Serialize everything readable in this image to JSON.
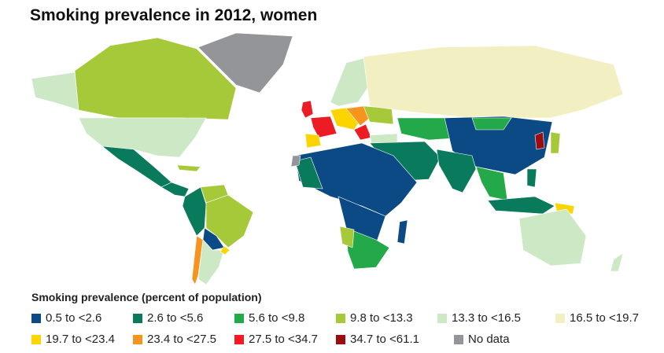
{
  "title": "Smoking prevalence in 2012, women",
  "legend": {
    "title": "Smoking prevalence (percent of population)",
    "items": [
      {
        "label": "0.5 to <2.6",
        "color": "#0b4a84"
      },
      {
        "label": "2.6 to <5.6",
        "color": "#0a7a5c"
      },
      {
        "label": "5.6 to <9.8",
        "color": "#23a84a"
      },
      {
        "label": "9.8 to <13.3",
        "color": "#a6c93a"
      },
      {
        "label": "13.3 to <16.5",
        "color": "#cce8c4"
      },
      {
        "label": "16.5 to <19.7",
        "color": "#f2f0c2"
      },
      {
        "label": "19.7 to <23.4",
        "color": "#fcd500"
      },
      {
        "label": "23.4 to <27.5",
        "color": "#f7941d"
      },
      {
        "label": "27.5 to <34.7",
        "color": "#ec1c24"
      },
      {
        "label": "34.7 to <61.1",
        "color": "#9b0d0f"
      },
      {
        "label": "No data",
        "color": "#939598"
      }
    ]
  }
}
